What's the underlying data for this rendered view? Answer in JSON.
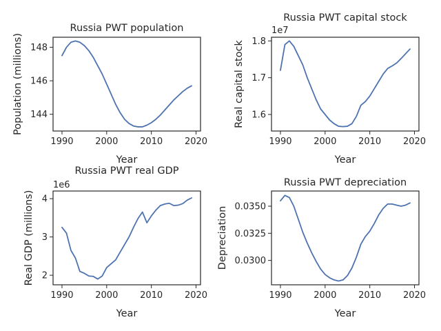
{
  "chart_data": [
    {
      "type": "line",
      "title": "Russia PWT population",
      "xlabel": "Year",
      "ylabel": "Population (millions)",
      "offset_label": "",
      "xlim": [
        1988,
        2021
      ],
      "ylim": [
        143.0,
        148.6
      ],
      "xticks": [
        1990,
        2000,
        2010,
        2020
      ],
      "yticks": [
        144,
        146,
        148
      ],
      "ytick_labels": [
        "144",
        "146",
        "148"
      ],
      "grid": false,
      "x": [
        1990,
        1991,
        1992,
        1993,
        1994,
        1995,
        1996,
        1997,
        1998,
        1999,
        2000,
        2001,
        2002,
        2003,
        2004,
        2005,
        2006,
        2007,
        2008,
        2009,
        2010,
        2011,
        2012,
        2013,
        2014,
        2015,
        2016,
        2017,
        2018,
        2019
      ],
      "values": [
        147.5,
        148.0,
        148.3,
        148.38,
        148.3,
        148.1,
        147.8,
        147.4,
        146.9,
        146.4,
        145.8,
        145.2,
        144.6,
        144.1,
        143.7,
        143.45,
        143.3,
        143.25,
        143.25,
        143.35,
        143.5,
        143.7,
        143.95,
        144.25,
        144.55,
        144.85,
        145.1,
        145.35,
        145.55,
        145.7
      ]
    },
    {
      "type": "line",
      "title": "Russia PWT capital stock",
      "xlabel": "Year",
      "ylabel": "Real capital stock",
      "offset_label": "1e7",
      "xlim": [
        1988,
        2021
      ],
      "ylim": [
        1.555,
        1.81
      ],
      "xticks": [
        1990,
        2000,
        2010,
        2020
      ],
      "yticks": [
        1.6,
        1.7,
        1.8
      ],
      "ytick_labels": [
        "1.6",
        "1.7",
        "1.8"
      ],
      "grid": false,
      "x": [
        1990,
        1991,
        1992,
        1993,
        1994,
        1995,
        1996,
        1997,
        1998,
        1999,
        2000,
        2001,
        2002,
        2003,
        2004,
        2005,
        2006,
        2007,
        2008,
        2009,
        2010,
        2011,
        2012,
        2013,
        2014,
        2015,
        2016,
        2017,
        2018,
        2019
      ],
      "values": [
        1.72,
        1.79,
        1.8,
        1.785,
        1.76,
        1.735,
        1.7,
        1.67,
        1.64,
        1.615,
        1.6,
        1.585,
        1.575,
        1.568,
        1.567,
        1.568,
        1.575,
        1.595,
        1.625,
        1.635,
        1.65,
        1.67,
        1.69,
        1.71,
        1.725,
        1.732,
        1.74,
        1.752,
        1.765,
        1.778
      ]
    },
    {
      "type": "line",
      "title": "Russia PWT real GDP",
      "xlabel": "Year",
      "ylabel": "Real GDP (millions)",
      "offset_label": "1e6",
      "xlim": [
        1988,
        2021
      ],
      "ylim": [
        1.75,
        4.2
      ],
      "xticks": [
        1990,
        2000,
        2010,
        2020
      ],
      "yticks": [
        2,
        3,
        4
      ],
      "ytick_labels": [
        "2",
        "3",
        "4"
      ],
      "grid": false,
      "x": [
        1990,
        1991,
        1992,
        1993,
        1994,
        1995,
        1996,
        1997,
        1998,
        1999,
        2000,
        2001,
        2002,
        2003,
        2004,
        2005,
        2006,
        2007,
        2008,
        2009,
        2010,
        2011,
        2012,
        2013,
        2014,
        2015,
        2016,
        2017,
        2018,
        2019
      ],
      "values": [
        3.25,
        3.1,
        2.65,
        2.45,
        2.1,
        2.05,
        1.98,
        1.97,
        1.9,
        1.98,
        2.2,
        2.3,
        2.4,
        2.6,
        2.8,
        3.0,
        3.25,
        3.48,
        3.65,
        3.37,
        3.55,
        3.7,
        3.82,
        3.86,
        3.88,
        3.82,
        3.83,
        3.87,
        3.96,
        4.02
      ]
    },
    {
      "type": "line",
      "title": "Russia PWT depreciation",
      "xlabel": "Year",
      "ylabel": "Depreciation",
      "offset_label": "",
      "xlim": [
        1988,
        2021
      ],
      "ylim": [
        0.02775,
        0.0364
      ],
      "xticks": [
        1990,
        2000,
        2010,
        2020
      ],
      "yticks": [
        0.03,
        0.0325,
        0.035
      ],
      "ytick_labels": [
        "0.0300",
        "0.0325",
        "0.0350"
      ],
      "grid": false,
      "x": [
        1990,
        1991,
        1992,
        1993,
        1994,
        1995,
        1996,
        1997,
        1998,
        1999,
        2000,
        2001,
        2002,
        2003,
        2004,
        2005,
        2006,
        2007,
        2008,
        2009,
        2010,
        2011,
        2012,
        2013,
        2014,
        2015,
        2016,
        2017,
        2018,
        2019
      ],
      "values": [
        0.0355,
        0.036,
        0.0358,
        0.035,
        0.0338,
        0.0326,
        0.0316,
        0.0307,
        0.0299,
        0.0292,
        0.0287,
        0.0284,
        0.0282,
        0.0281,
        0.0282,
        0.0286,
        0.0293,
        0.0303,
        0.0315,
        0.0322,
        0.0327,
        0.0334,
        0.0342,
        0.0348,
        0.0352,
        0.0352,
        0.0351,
        0.035,
        0.0351,
        0.0353
      ]
    }
  ]
}
